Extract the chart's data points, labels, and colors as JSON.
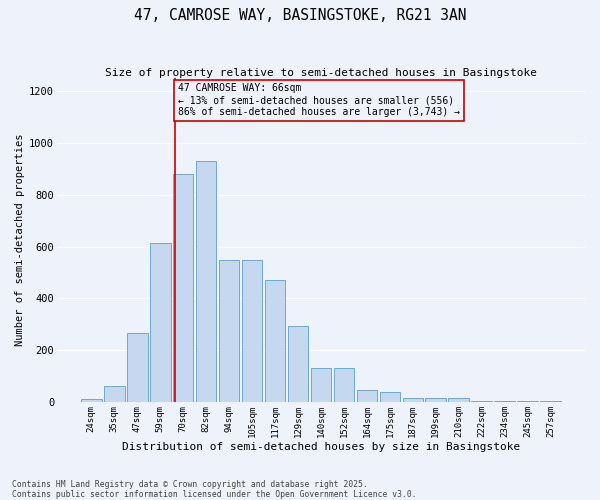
{
  "title": "47, CAMROSE WAY, BASINGSTOKE, RG21 3AN",
  "subtitle": "Size of property relative to semi-detached houses in Basingstoke",
  "xlabel": "Distribution of semi-detached houses by size in Basingstoke",
  "ylabel": "Number of semi-detached properties",
  "categories": [
    "24sqm",
    "35sqm",
    "47sqm",
    "59sqm",
    "70sqm",
    "82sqm",
    "94sqm",
    "105sqm",
    "117sqm",
    "129sqm",
    "140sqm",
    "152sqm",
    "164sqm",
    "175sqm",
    "187sqm",
    "199sqm",
    "210sqm",
    "222sqm",
    "234sqm",
    "245sqm",
    "257sqm"
  ],
  "values": [
    10,
    60,
    265,
    615,
    880,
    930,
    550,
    550,
    470,
    295,
    130,
    130,
    45,
    40,
    15,
    15,
    15,
    3,
    3,
    3,
    3
  ],
  "bar_color": "#c5d8f0",
  "bar_edge_color": "#6aaad4",
  "vline_color": "#cc0000",
  "annotation_text": "47 CAMROSE WAY: 66sqm\n← 13% of semi-detached houses are smaller (556)\n86% of semi-detached houses are larger (3,743) →",
  "ylim": [
    0,
    1250
  ],
  "yticks": [
    0,
    200,
    400,
    600,
    800,
    1000,
    1200
  ],
  "footer_line1": "Contains HM Land Registry data © Crown copyright and database right 2025.",
  "footer_line2": "Contains public sector information licensed under the Open Government Licence v3.0.",
  "background_color": "#edf2fb",
  "grid_color": "#ffffff"
}
